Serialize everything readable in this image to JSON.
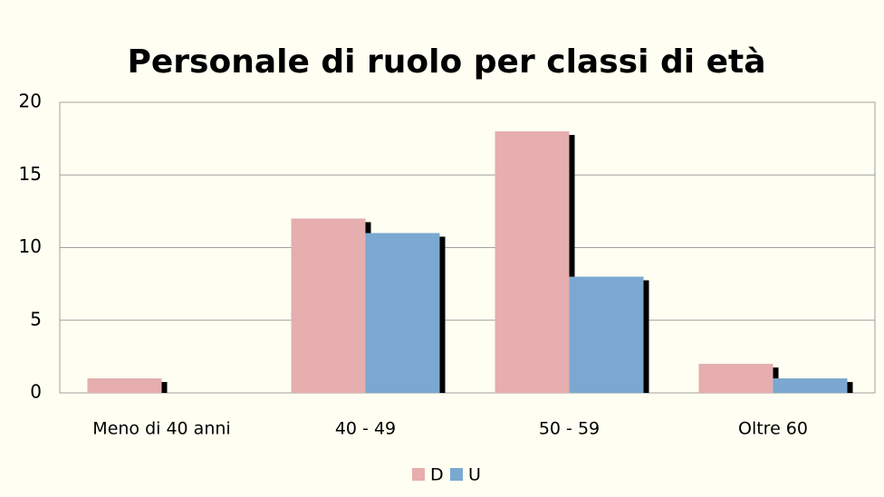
{
  "chart_data": {
    "type": "bar",
    "title": "Personale di ruolo per classi di età",
    "categories": [
      "Meno di 40 anni",
      "40 - 49",
      "50 - 59",
      "Oltre 60"
    ],
    "series": [
      {
        "name": "D",
        "color": "#e6aeae",
        "values": [
          1,
          12,
          18,
          2
        ]
      },
      {
        "name": "U",
        "color": "#7aa8d0",
        "values": [
          0,
          11,
          8,
          1
        ]
      }
    ],
    "ylim": [
      0,
      20
    ],
    "yticks": [
      0,
      5,
      10,
      15,
      20
    ],
    "grid": true,
    "legend": "bottom"
  }
}
